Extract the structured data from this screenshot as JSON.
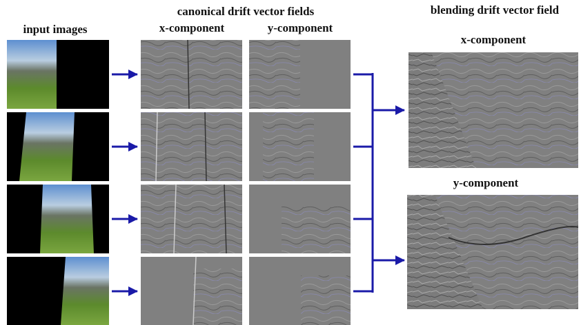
{
  "input_column": {
    "title": "input images"
  },
  "canonical": {
    "title": "canonical drift vector fields",
    "x_label": "x-component",
    "y_label": "y-component"
  },
  "blending": {
    "title": "blending drift vector field",
    "x_label": "x-component",
    "y_label": "y-component"
  }
}
